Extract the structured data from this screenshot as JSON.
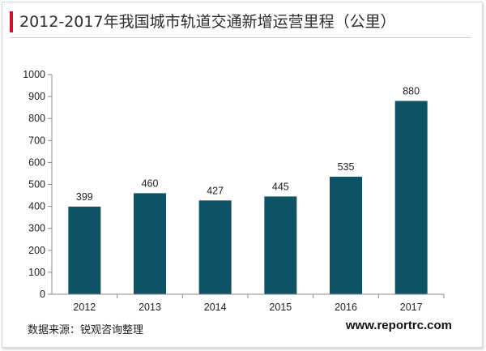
{
  "chart_data": {
    "type": "bar",
    "title": "2012-2017年我国城市轨道交通新增运营里程（公里）",
    "categories": [
      "2012",
      "2013",
      "2014",
      "2015",
      "2016",
      "2017"
    ],
    "values": [
      399,
      460,
      427,
      445,
      535,
      880
    ],
    "ylim": [
      0,
      1000
    ],
    "yticks": [
      0,
      100,
      200,
      300,
      400,
      500,
      600,
      700,
      800,
      900,
      1000
    ],
    "xlabel": "",
    "ylabel": "",
    "grid": false,
    "legend": "none",
    "bar_color": "#0f5466",
    "title_accent_color": "#d2112a"
  },
  "footer": {
    "source": "数据来源：锐观咨询整理",
    "website": "www.reportrc.com"
  }
}
